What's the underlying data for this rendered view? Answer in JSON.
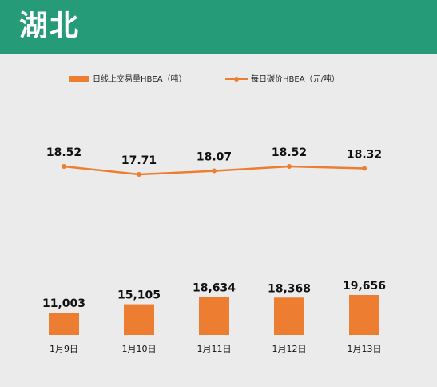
{
  "header": {
    "title": "湖北"
  },
  "colors": {
    "header_bg": "#269b78",
    "series": "#ed7d31",
    "background": "#ebebeb"
  },
  "chart_data": {
    "type": "bar+line",
    "categories": [
      "1月9日",
      "1月10日",
      "1月11日",
      "1月12日",
      "1月13日"
    ],
    "series": [
      {
        "name": "日线上交易量HBEA（吨）",
        "type": "bar",
        "values": [
          11003,
          15105,
          18634,
          18368,
          19656
        ],
        "labels": [
          "11,003",
          "15,105",
          "18,634",
          "18,368",
          "19,656"
        ]
      },
      {
        "name": "每日碳价HBEA（元/吨）",
        "type": "line",
        "values": [
          18.52,
          17.71,
          18.07,
          18.52,
          18.32
        ],
        "labels": [
          "18.52",
          "17.71",
          "18.07",
          "18.52",
          "18.32"
        ]
      }
    ],
    "legend": "top",
    "grid": false
  }
}
